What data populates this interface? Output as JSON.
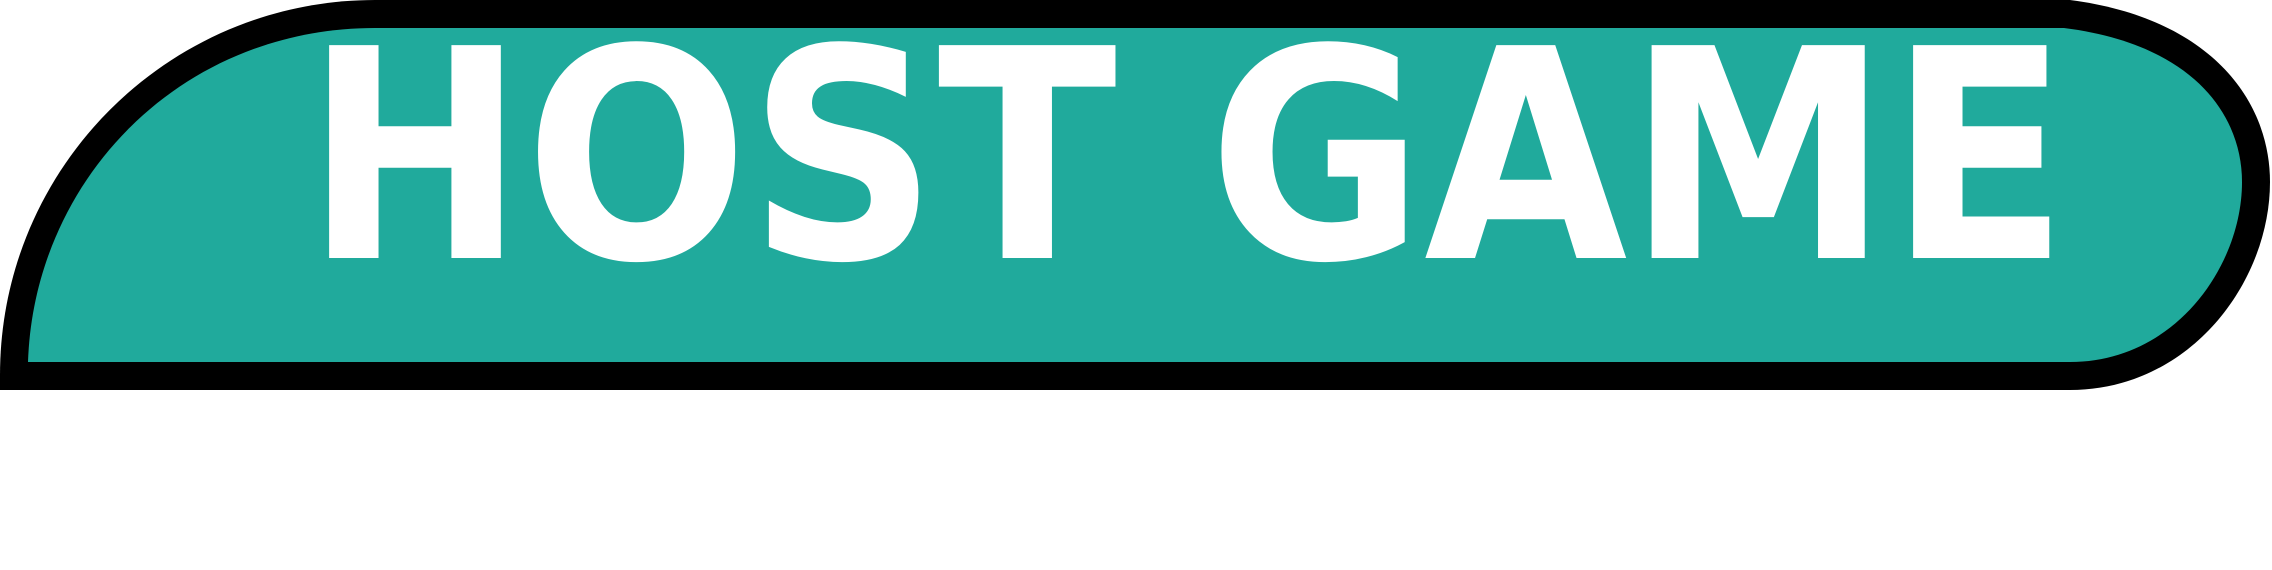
{
  "menu": {
    "host_game_button": {
      "label": "HOST GAME",
      "fill_color": "#20aa9c",
      "border_color": "#000000",
      "text_color": "#ffffff"
    }
  }
}
